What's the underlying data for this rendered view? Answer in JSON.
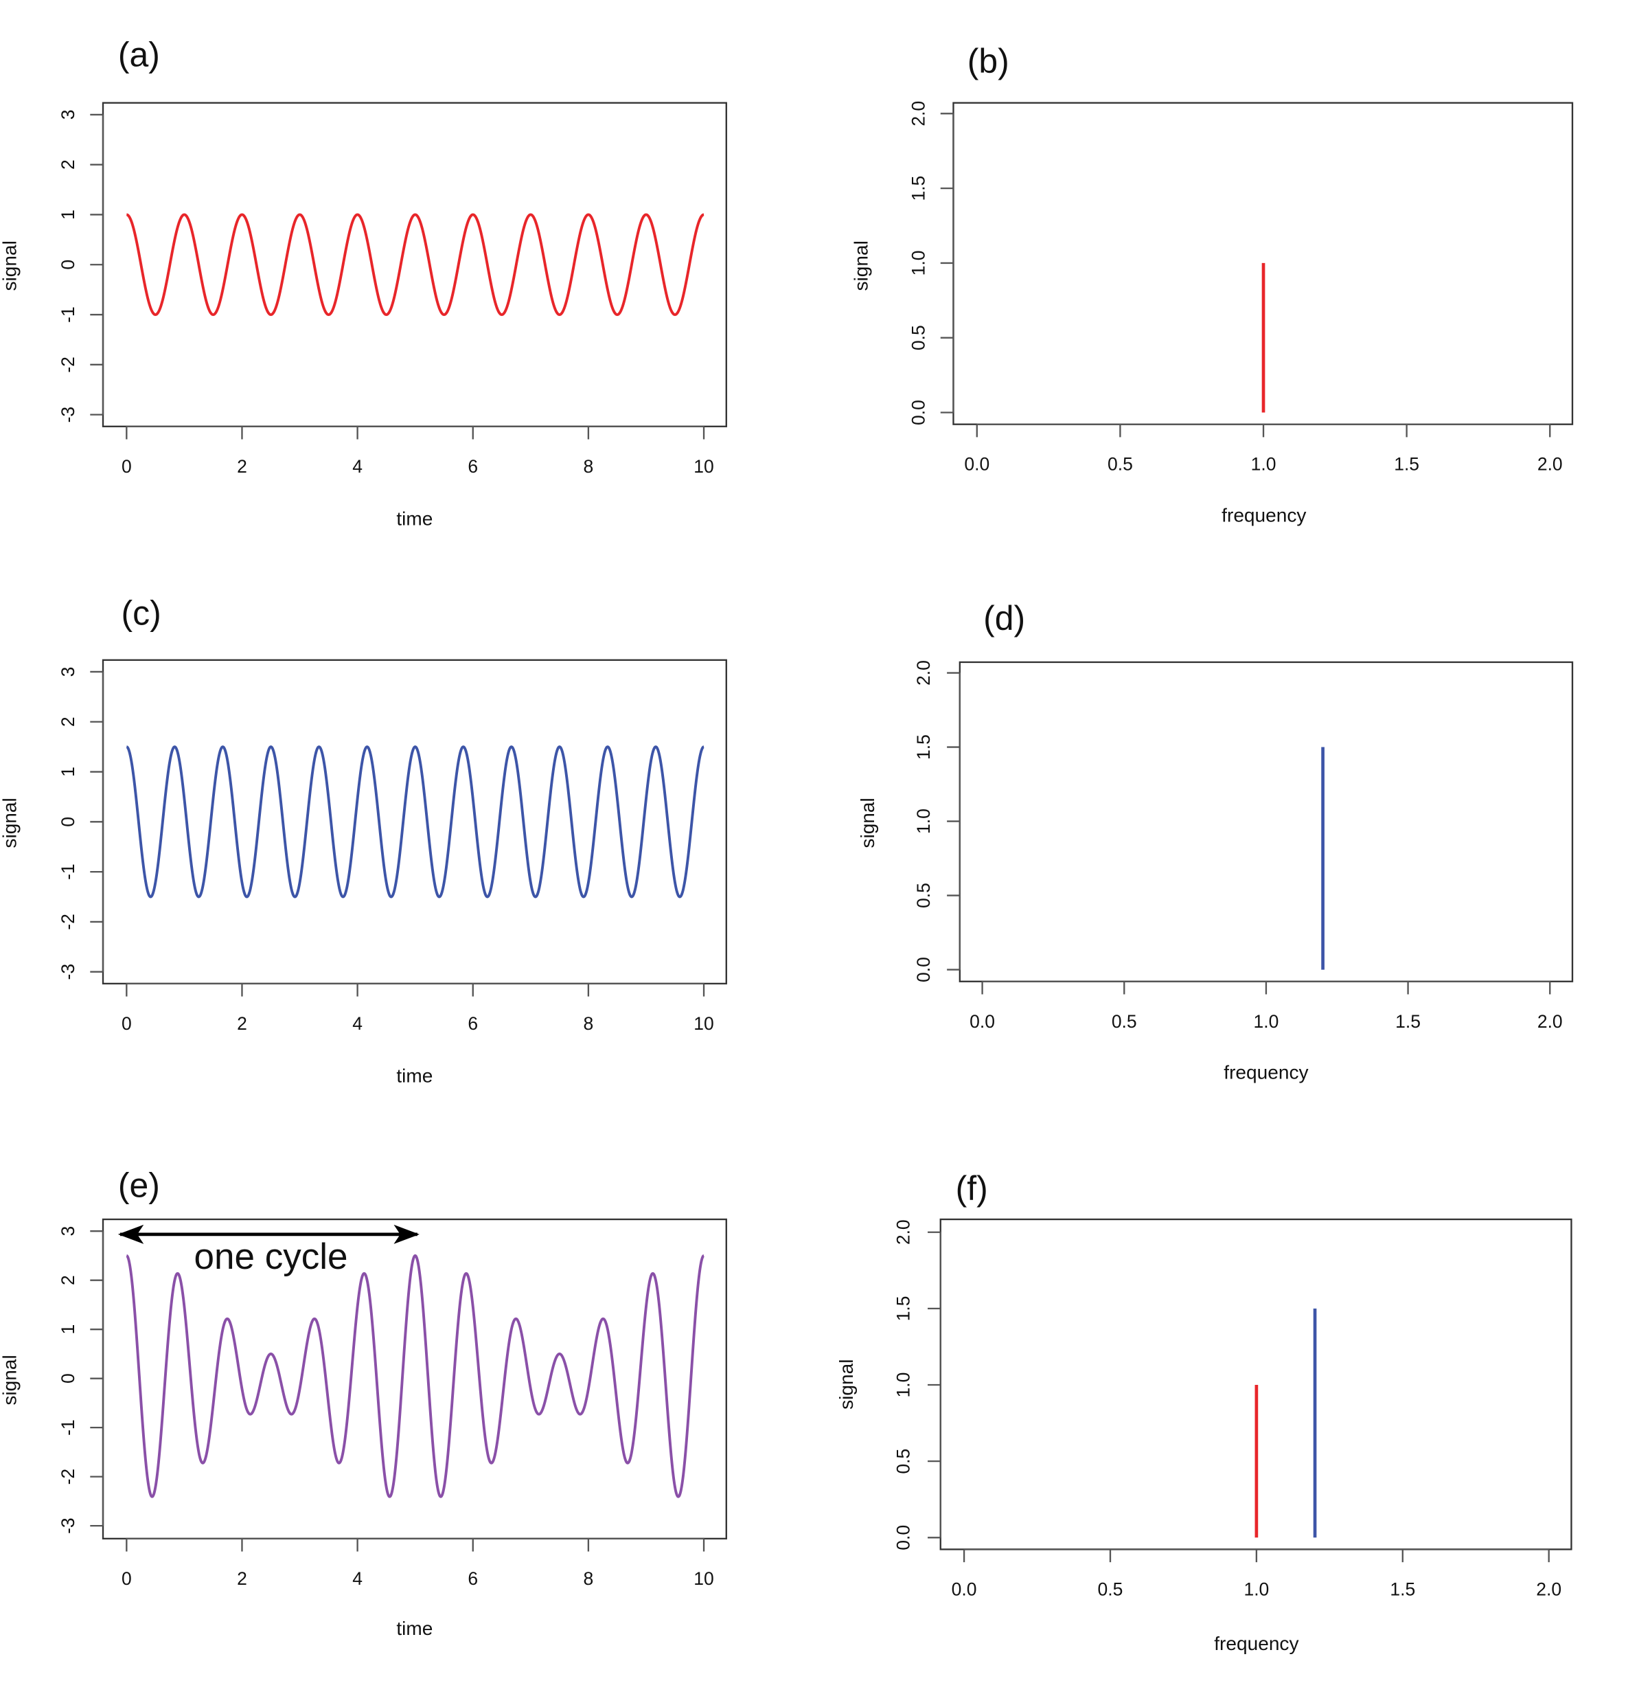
{
  "colors": {
    "red": "#e8262a",
    "blue": "#3d55a8",
    "purple": "#8a50a8"
  },
  "chart_data": [
    {
      "panel": "(a)",
      "type": "line",
      "xlabel": "time",
      "ylabel": "signal",
      "xlim": [
        0,
        10
      ],
      "ylim": [
        -3,
        3
      ],
      "xticks": [
        "0",
        "2",
        "4",
        "6",
        "8",
        "10"
      ],
      "yticks": [
        "-3",
        "-2",
        "-1",
        "0",
        "1",
        "2",
        "3"
      ],
      "series": [
        {
          "function": "cosine",
          "amplitude": 1,
          "frequency": 1,
          "color": "#e8262a"
        }
      ]
    },
    {
      "panel": "(b)",
      "type": "bar",
      "xlabel": "frequency",
      "ylabel": "signal",
      "xlim": [
        0,
        2
      ],
      "ylim": [
        0,
        2
      ],
      "xticks": [
        "0.0",
        "0.5",
        "1.0",
        "1.5",
        "2.0"
      ],
      "yticks": [
        "0.0",
        "0.5",
        "1.0",
        "1.5",
        "2.0"
      ],
      "spikes": [
        {
          "x": 1.0,
          "y": 1.0,
          "color": "#e8262a"
        }
      ]
    },
    {
      "panel": "(c)",
      "type": "line",
      "xlabel": "time",
      "ylabel": "signal",
      "xlim": [
        0,
        10
      ],
      "ylim": [
        -3,
        3
      ],
      "xticks": [
        "0",
        "2",
        "4",
        "6",
        "8",
        "10"
      ],
      "yticks": [
        "-3",
        "-2",
        "-1",
        "0",
        "1",
        "2",
        "3"
      ],
      "series": [
        {
          "function": "cosine",
          "amplitude": 1.5,
          "frequency": 1.2,
          "color": "#3d55a8"
        }
      ]
    },
    {
      "panel": "(d)",
      "type": "bar",
      "xlabel": "frequency",
      "ylabel": "signal",
      "xlim": [
        0,
        2
      ],
      "ylim": [
        0,
        2
      ],
      "xticks": [
        "0.0",
        "0.5",
        "1.0",
        "1.5",
        "2.0"
      ],
      "yticks": [
        "0.0",
        "0.5",
        "1.0",
        "1.5",
        "2.0"
      ],
      "spikes": [
        {
          "x": 1.2,
          "y": 1.5,
          "color": "#3d55a8"
        }
      ]
    },
    {
      "panel": "(e)",
      "type": "line",
      "xlabel": "time",
      "ylabel": "signal",
      "xlim": [
        0,
        10
      ],
      "ylim": [
        -3,
        3
      ],
      "xticks": [
        "0",
        "2",
        "4",
        "6",
        "8",
        "10"
      ],
      "yticks": [
        "-3",
        "-2",
        "-1",
        "0",
        "1",
        "2",
        "3"
      ],
      "series": [
        {
          "function": "sum of cosines",
          "components": [
            {
              "amplitude": 1,
              "frequency": 1
            },
            {
              "amplitude": 1.5,
              "frequency": 1.2
            }
          ],
          "color": "#8a50a8"
        }
      ],
      "annotation": {
        "text": "one cycle",
        "from_x": 0,
        "to_x": 5
      }
    },
    {
      "panel": "(f)",
      "type": "bar",
      "xlabel": "frequency",
      "ylabel": "signal",
      "xlim": [
        0,
        2
      ],
      "ylim": [
        0,
        2
      ],
      "xticks": [
        "0.0",
        "0.5",
        "1.0",
        "1.5",
        "2.0"
      ],
      "yticks": [
        "0.0",
        "0.5",
        "1.0",
        "1.5",
        "2.0"
      ],
      "spikes": [
        {
          "x": 1.0,
          "y": 1.0,
          "color": "#e8262a"
        },
        {
          "x": 1.2,
          "y": 1.5,
          "color": "#3d55a8"
        }
      ]
    }
  ]
}
